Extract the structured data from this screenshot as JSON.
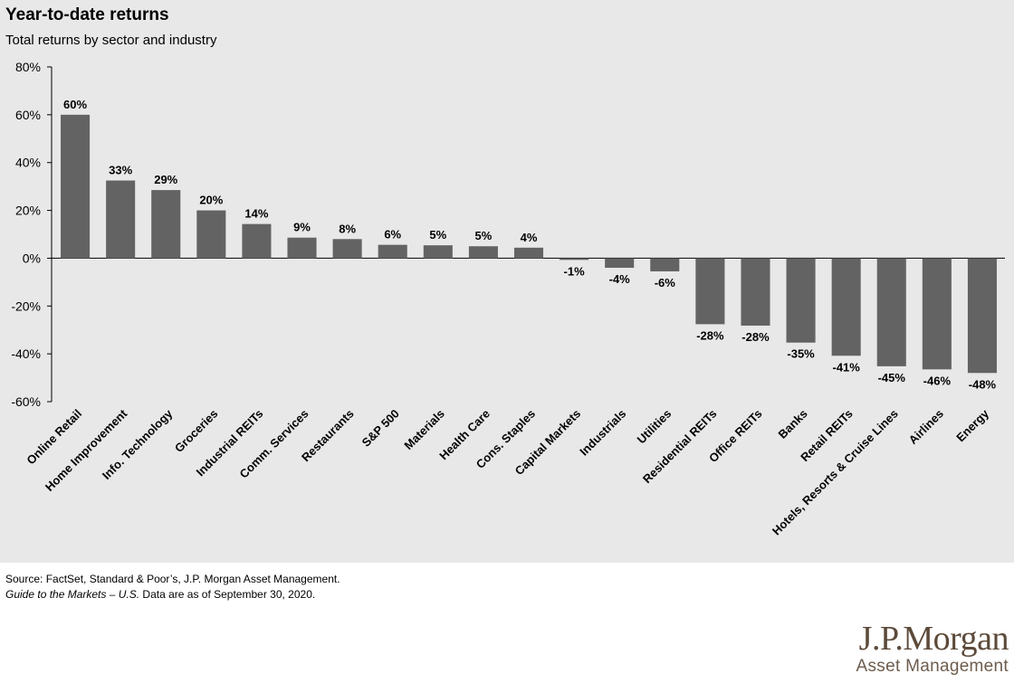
{
  "chart_data": {
    "type": "bar",
    "title": "Year-to-date returns",
    "subtitle": "Total returns by sector and industry",
    "xlabel": "",
    "ylabel": "",
    "ylim": [
      -60,
      80
    ],
    "yticks": [
      80,
      60,
      40,
      20,
      0,
      -20,
      -40,
      -60
    ],
    "ytick_labels": [
      "80%",
      "60%",
      "40%",
      "20%",
      "0%",
      "-20%",
      "-40%",
      "-60%"
    ],
    "grid": false,
    "legend": "none",
    "bar_color": "#636363",
    "categories": [
      "Online Retail",
      "Home Improvement",
      "Info. Technology",
      "Groceries",
      "Industrial REITs",
      "Comm. Services",
      "Restaurants",
      "S&P 500",
      "Materials",
      "Health Care",
      "Cons. Staples",
      "Capital Markets",
      "Industrials",
      "Utilities",
      "Residential REITs",
      "Office REITs",
      "Banks",
      "Retail REITs",
      "Hotels, Resorts & Cruise Lines",
      "Airlines",
      "Energy"
    ],
    "values": [
      60,
      32.5,
      28.5,
      20,
      14.3,
      8.6,
      8,
      5.6,
      5.4,
      5,
      4.4,
      -0.7,
      -4,
      -5.5,
      -27.6,
      -28.2,
      -35.3,
      -40.8,
      -45.2,
      -46.5,
      -48
    ],
    "value_labels": [
      "60%",
      "33%",
      "29%",
      "20%",
      "14%",
      "9%",
      "8%",
      "6%",
      "5%",
      "5%",
      "4%",
      "-1%",
      "-4%",
      "-6%",
      "-28%",
      "-28%",
      "-35%",
      "-41%",
      "-45%",
      "-46%",
      "-48%"
    ]
  },
  "footer": {
    "source": "Source: FactSet, Standard & Poor’s, J.P. Morgan Asset Management.",
    "guide_title": "Guide to the Markets – U.S.",
    "guide_rest": " Data are as of September 30, 2020."
  },
  "logo": {
    "main": "J.P.Morgan",
    "sub": "Asset Management"
  }
}
